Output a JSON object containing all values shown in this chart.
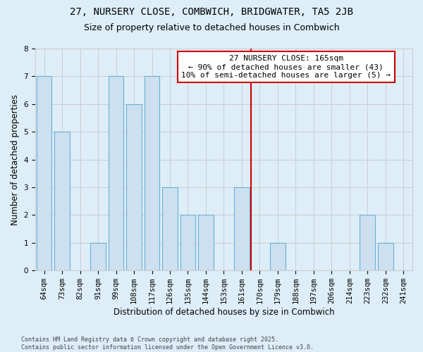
{
  "title": "27, NURSERY CLOSE, COMBWICH, BRIDGWATER, TA5 2JB",
  "subtitle": "Size of property relative to detached houses in Combwich",
  "xlabel": "Distribution of detached houses by size in Combwich",
  "ylabel": "Number of detached properties",
  "categories": [
    "64sqm",
    "73sqm",
    "82sqm",
    "91sqm",
    "99sqm",
    "108sqm",
    "117sqm",
    "126sqm",
    "135sqm",
    "144sqm",
    "153sqm",
    "161sqm",
    "170sqm",
    "179sqm",
    "188sqm",
    "197sqm",
    "206sqm",
    "214sqm",
    "223sqm",
    "232sqm",
    "241sqm"
  ],
  "values": [
    7,
    5,
    0,
    1,
    7,
    6,
    7,
    3,
    2,
    2,
    0,
    3,
    0,
    1,
    0,
    0,
    0,
    0,
    2,
    1,
    0
  ],
  "bar_color": "#cce0f0",
  "bar_edge_color": "#6aafd6",
  "bar_edge_width": 0.8,
  "vline_x_index": 11.5,
  "vline_color": "#cc0000",
  "annotation_text": "27 NURSERY CLOSE: 165sqm\n← 90% of detached houses are smaller (43)\n10% of semi-detached houses are larger (5) →",
  "annotation_box_color": "#cc0000",
  "annotation_text_color": "#000000",
  "annotation_bg": "#ffffff",
  "ylim": [
    0,
    8
  ],
  "yticks": [
    0,
    1,
    2,
    3,
    4,
    5,
    6,
    7,
    8
  ],
  "grid_color": "#cccccc",
  "bg_color": "#ddeef8",
  "footer": "Contains HM Land Registry data © Crown copyright and database right 2025.\nContains public sector information licensed under the Open Government Licence v3.0.",
  "title_fontsize": 10,
  "subtitle_fontsize": 9,
  "xlabel_fontsize": 8.5,
  "ylabel_fontsize": 8.5,
  "tick_fontsize": 7.5,
  "annotation_fontsize": 8,
  "footer_fontsize": 6
}
